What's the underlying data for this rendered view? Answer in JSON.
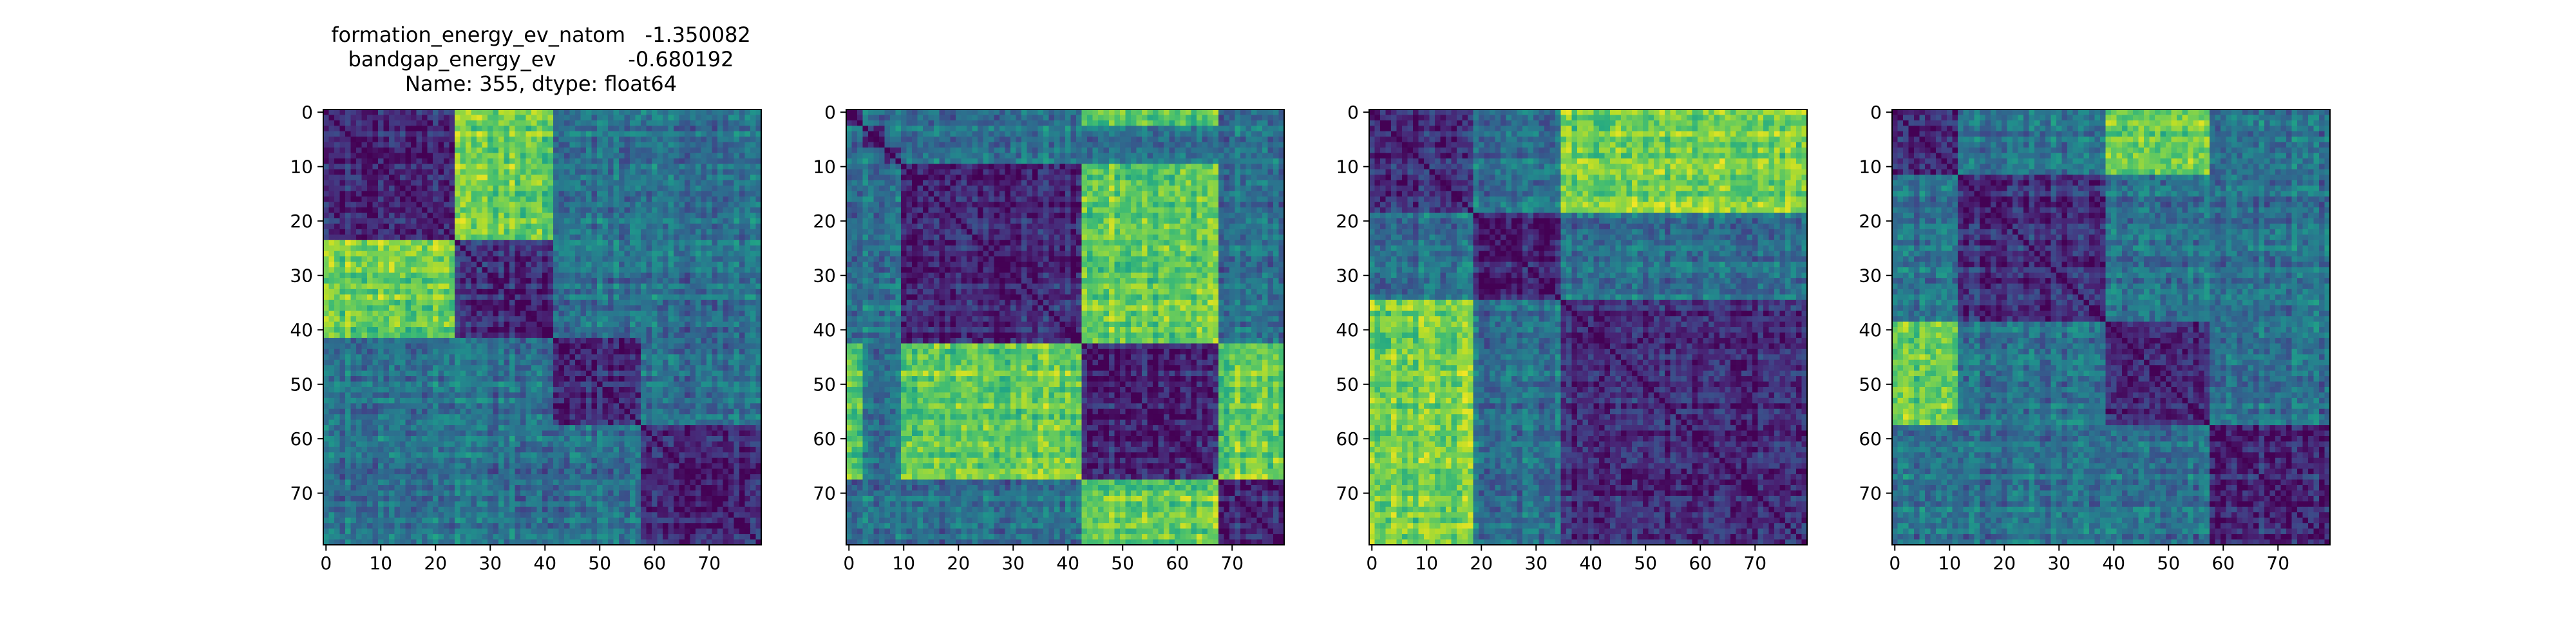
{
  "chart_data": [
    {
      "type": "heatmap",
      "title": [
        "formation_energy_ev_natom   -1.350082",
        "bandgap_energy_ev           -0.680192",
        "Name: 355, dtype: float64"
      ],
      "n": 80,
      "blocks": [
        0,
        24,
        42,
        58,
        80
      ],
      "bright": [
        [
          0,
          1
        ],
        [
          1,
          0
        ]
      ],
      "xticks": [
        0,
        10,
        20,
        30,
        40,
        50,
        60,
        70
      ],
      "yticks": [
        0,
        10,
        20,
        30,
        40,
        50,
        60,
        70
      ],
      "colormap": "viridis"
    },
    {
      "type": "heatmap",
      "n": 80,
      "blocks": [
        0,
        3,
        7,
        10,
        43,
        68,
        80
      ],
      "bright": [
        [
          0,
          4
        ],
        [
          3,
          4
        ],
        [
          4,
          0
        ],
        [
          4,
          3
        ],
        [
          4,
          5
        ],
        [
          5,
          4
        ]
      ],
      "xticks": [
        0,
        10,
        20,
        30,
        40,
        50,
        60,
        70
      ],
      "yticks": [
        0,
        10,
        20,
        30,
        40,
        50,
        60,
        70
      ],
      "colormap": "viridis"
    },
    {
      "type": "heatmap",
      "n": 80,
      "blocks": [
        0,
        19,
        35,
        80
      ],
      "bright": [
        [
          0,
          2
        ],
        [
          2,
          0
        ]
      ],
      "xticks": [
        0,
        10,
        20,
        30,
        40,
        50,
        60,
        70
      ],
      "yticks": [
        0,
        10,
        20,
        30,
        40,
        50,
        60,
        70
      ],
      "colormap": "viridis"
    },
    {
      "type": "heatmap",
      "n": 80,
      "blocks": [
        0,
        12,
        39,
        58,
        80
      ],
      "bright": [
        [
          0,
          2
        ],
        [
          2,
          0
        ]
      ],
      "xticks": [
        0,
        10,
        20,
        30,
        40,
        50,
        60,
        70
      ],
      "yticks": [
        0,
        10,
        20,
        30,
        40,
        50,
        60,
        70
      ],
      "colormap": "viridis"
    }
  ]
}
